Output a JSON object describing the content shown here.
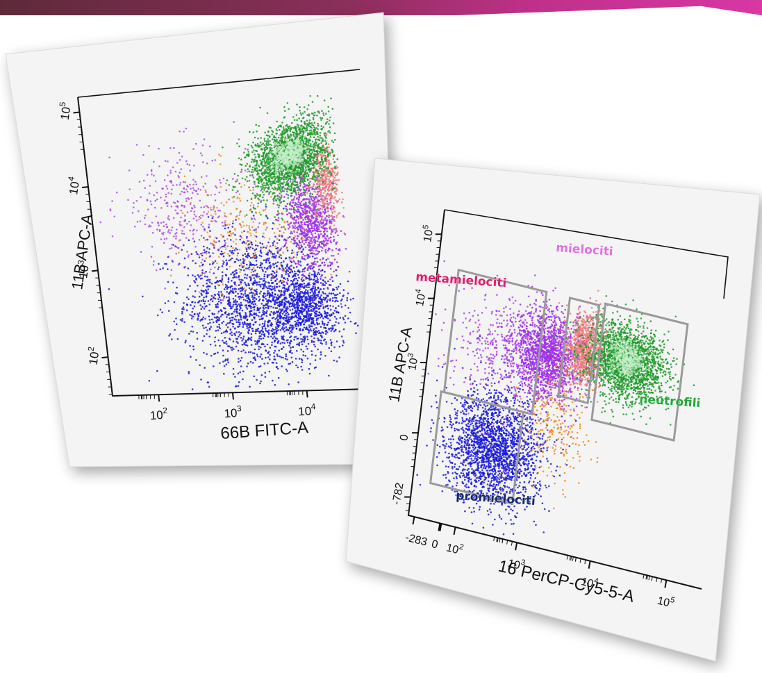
{
  "chart_data": [
    {
      "type": "scatter",
      "xlabel": "66B FITC-A",
      "ylabel": "11B APC-A",
      "x_scale": "log",
      "y_scale": "log",
      "x_ticks": [
        "10",
        "10",
        "10"
      ],
      "x_tick_powers": [
        "2",
        "3",
        "4"
      ],
      "y_ticks": [
        "10",
        "10",
        "10",
        "10"
      ],
      "y_tick_powers": [
        "2",
        "3",
        "4",
        "5"
      ],
      "series": [
        {
          "color": "#1a1ad9",
          "population": "blue"
        },
        {
          "color": "#a030e8",
          "population": "purple"
        },
        {
          "color": "#1e9a2a",
          "population": "green"
        },
        {
          "color": "#f08a1a",
          "population": "orange"
        },
        {
          "color": "#f07a7a",
          "population": "salmon"
        }
      ]
    },
    {
      "type": "scatter",
      "xlabel": "16 PerCP-Cy5-5-A",
      "ylabel": "11B APC-A",
      "x_scale": "log",
      "y_scale": "log",
      "x_ticks": [
        "-283",
        "0",
        "10",
        "10",
        "10",
        "10"
      ],
      "x_tick_powers": [
        "",
        "",
        "2",
        "3",
        "4",
        "5"
      ],
      "y_ticks": [
        "-782",
        "0",
        "10",
        "10",
        "10"
      ],
      "y_tick_powers": [
        "",
        "",
        "3",
        "4",
        "5"
      ],
      "gates": [
        {
          "label": "metamielociti",
          "color": "#e0206a"
        },
        {
          "label": "mielociti",
          "color": "#e070e0"
        },
        {
          "label": "neutrofili",
          "color": "#22a83a"
        },
        {
          "label": "promielociti",
          "color": "#1a2a6a"
        }
      ],
      "series": [
        {
          "color": "#1a1ad9",
          "population": "promielociti"
        },
        {
          "color": "#a030e8",
          "population": "metamielociti"
        },
        {
          "color": "#f07a7a",
          "population": "mielociti"
        },
        {
          "color": "#1e9a2a",
          "population": "neutrofili"
        },
        {
          "color": "#f08a1a",
          "population": "other"
        }
      ]
    }
  ]
}
